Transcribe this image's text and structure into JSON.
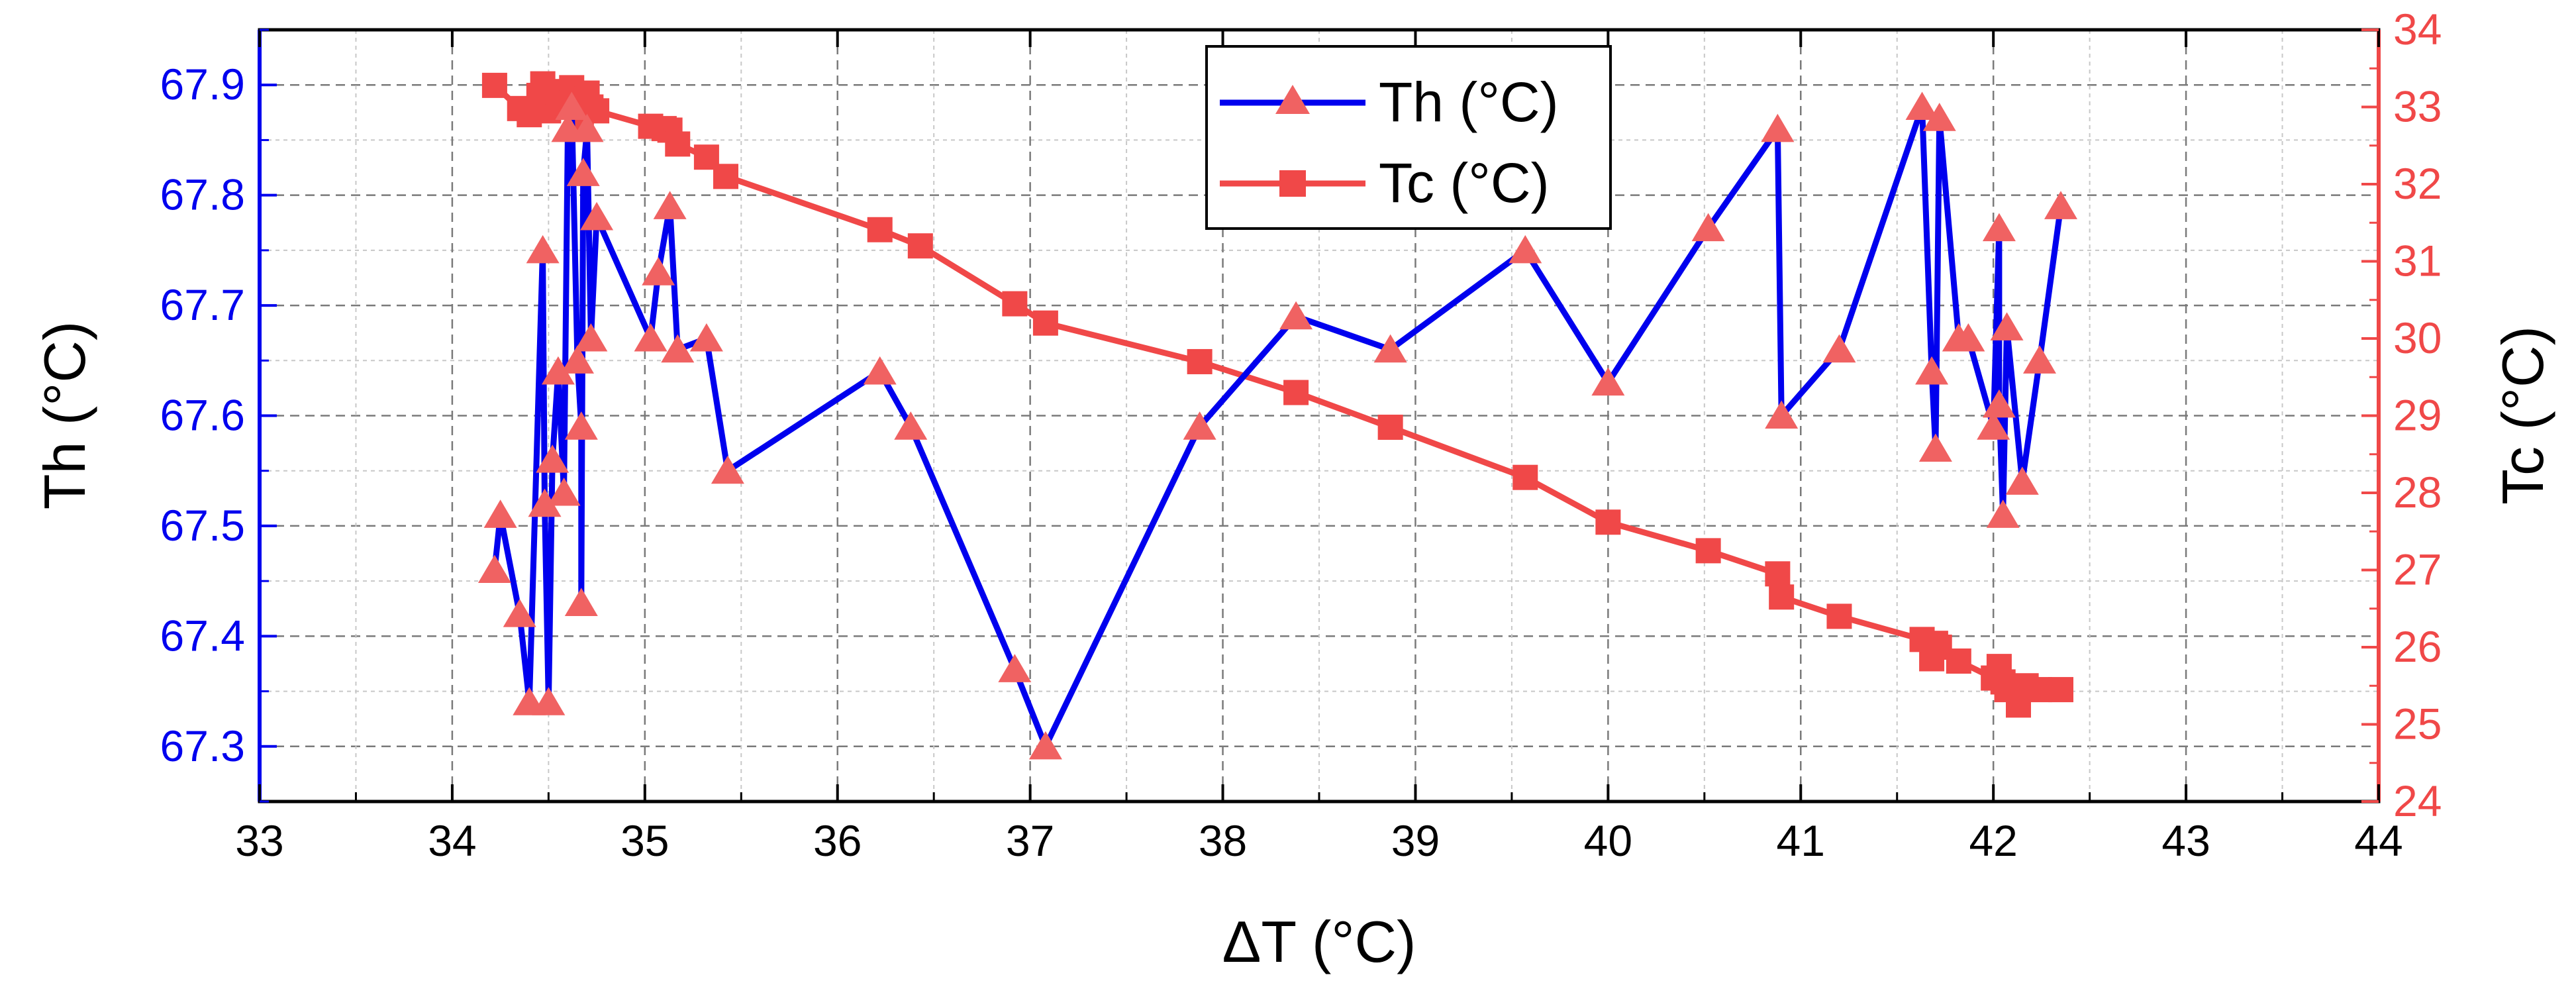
{
  "chart_data": {
    "type": "line",
    "xlabel": "ΔT (°C)",
    "ylabel_left": "Th (°C)",
    "ylabel_right": "Tc (°C)",
    "xlim": [
      33,
      44
    ],
    "ylim_left": [
      67.25,
      67.95
    ],
    "ylim_right": [
      24,
      34
    ],
    "x_ticks": [
      "33",
      "34",
      "35",
      "36",
      "37",
      "38",
      "39",
      "40",
      "41",
      "42",
      "43",
      "44"
    ],
    "y_left_ticks": [
      "67.3",
      "67.4",
      "67.5",
      "67.6",
      "67.7",
      "67.8",
      "67.9"
    ],
    "y_right_ticks": [
      "24",
      "25",
      "26",
      "27",
      "28",
      "29",
      "30",
      "31",
      "32",
      "33",
      "34"
    ],
    "grid": true,
    "legend_position": "top-center",
    "series": [
      {
        "name": "Th (°C)",
        "axis": "left",
        "marker": "triangle",
        "line_color": "#0000ee",
        "marker_color": "#f06262",
        "x": [
          34.22,
          34.25,
          34.35,
          34.4,
          34.47,
          34.48,
          34.5,
          34.52,
          34.55,
          34.58,
          34.6,
          34.62,
          34.65,
          34.67,
          34.67,
          34.68,
          34.7,
          34.72,
          34.75,
          35.03,
          35.07,
          35.13,
          35.17,
          35.32,
          35.43,
          36.22,
          36.38,
          36.92,
          37.08,
          37.88,
          38.38,
          38.87,
          39.57,
          40.0,
          40.52,
          40.88,
          40.9,
          41.2,
          41.63,
          41.68,
          41.7,
          41.72,
          41.82,
          41.87,
          42.0,
          42.03,
          42.03,
          42.05,
          42.07,
          42.15,
          42.24,
          42.35
        ],
        "y": [
          67.46,
          67.51,
          67.42,
          67.34,
          67.75,
          67.52,
          67.34,
          67.56,
          67.64,
          67.53,
          67.86,
          67.88,
          67.65,
          67.59,
          67.43,
          67.82,
          67.86,
          67.67,
          67.78,
          67.67,
          67.73,
          67.79,
          67.66,
          67.67,
          67.55,
          67.64,
          67.59,
          67.37,
          67.3,
          67.59,
          67.69,
          67.66,
          67.75,
          67.63,
          67.77,
          67.86,
          67.6,
          67.66,
          67.88,
          67.64,
          67.57,
          67.87,
          67.67,
          67.67,
          67.59,
          67.77,
          67.61,
          67.51,
          67.68,
          67.54,
          67.65,
          67.79
        ]
      },
      {
        "name": "Tc (°C)",
        "axis": "right",
        "marker": "square",
        "line_color": "#f04848",
        "marker_color": "#f04848",
        "x": [
          34.22,
          34.35,
          34.4,
          34.45,
          34.47,
          34.5,
          34.52,
          34.55,
          34.6,
          34.62,
          34.65,
          34.67,
          34.7,
          34.72,
          34.75,
          35.03,
          35.1,
          35.13,
          35.17,
          35.32,
          35.42,
          36.22,
          36.43,
          36.92,
          37.08,
          37.88,
          38.38,
          38.87,
          39.57,
          40.0,
          40.52,
          40.88,
          40.9,
          41.2,
          41.63,
          41.68,
          41.7,
          41.72,
          41.82,
          42.0,
          42.03,
          42.05,
          42.07,
          42.13,
          42.17,
          42.24,
          42.35
        ],
        "y": [
          33.28,
          32.98,
          32.9,
          33.15,
          33.3,
          32.95,
          33.2,
          33.05,
          33.0,
          33.25,
          33.1,
          32.85,
          33.18,
          33.0,
          32.95,
          32.75,
          32.72,
          32.7,
          32.52,
          32.35,
          32.1,
          31.41,
          31.2,
          30.45,
          30.2,
          29.7,
          29.3,
          28.85,
          28.2,
          27.62,
          27.25,
          26.95,
          26.65,
          26.4,
          26.1,
          25.85,
          26.05,
          26.0,
          25.82,
          25.6,
          25.75,
          25.55,
          25.45,
          25.25,
          25.5,
          25.45,
          25.45
        ]
      }
    ]
  }
}
